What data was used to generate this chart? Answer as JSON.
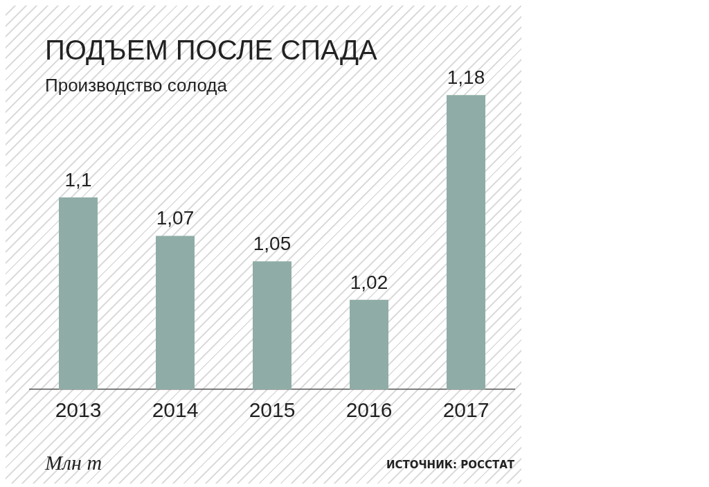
{
  "chart_data": {
    "type": "bar",
    "title": "ПОДЪЕМ ПОСЛЕ СПАДА",
    "subtitle": "Производство солода",
    "categories": [
      "2013",
      "2014",
      "2015",
      "2016",
      "2017"
    ],
    "values": [
      1.1,
      1.07,
      1.05,
      1.02,
      1.18
    ],
    "color": "#8fada6",
    "value_labels": [
      "1,1",
      "1,07",
      "1,05",
      "1,02",
      "1,18"
    ],
    "tick_labels": "x",
    "grid": false,
    "legend": false,
    "annotations": [
      "Млн т",
      "ИСТОЧНИК: РОССТАТ"
    ]
  }
}
